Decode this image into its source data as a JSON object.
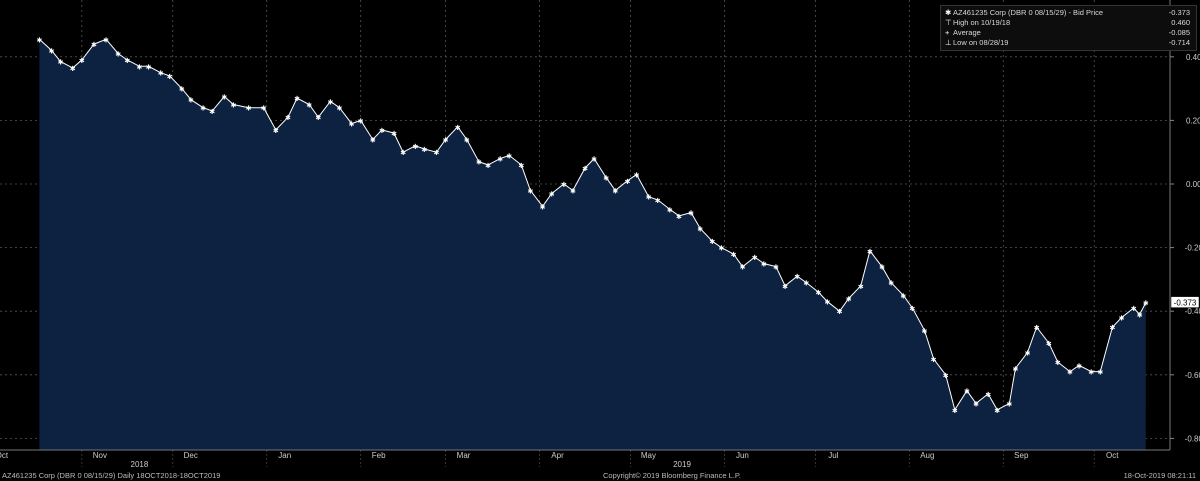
{
  "chart_data": {
    "type": "area",
    "title": "",
    "xlabel": "",
    "ylabel": "",
    "ylim": [
      -0.85,
      0.5
    ],
    "y_ticks": [
      "0.400",
      "0.200",
      "0.000",
      "-0.200",
      "-0.400",
      "-0.600",
      "-0.800"
    ],
    "y_tick_values": [
      0.4,
      0.2,
      0.0,
      -0.2,
      -0.4,
      -0.6,
      -0.8
    ],
    "x_range": [
      "2018-10-18",
      "2019-10-18"
    ],
    "month_labels": [
      {
        "label": "Oct",
        "date": "2018-10-01"
      },
      {
        "label": "Nov",
        "date": "2018-11-01"
      },
      {
        "label": "Dec",
        "date": "2018-12-01"
      },
      {
        "label": "Jan",
        "date": "2019-01-01"
      },
      {
        "label": "Feb",
        "date": "2019-02-01"
      },
      {
        "label": "Mar",
        "date": "2019-03-01"
      },
      {
        "label": "Apr",
        "date": "2019-04-01"
      },
      {
        "label": "May",
        "date": "2019-05-01"
      },
      {
        "label": "Jun",
        "date": "2019-06-01"
      },
      {
        "label": "Jul",
        "date": "2019-07-01"
      },
      {
        "label": "Aug",
        "date": "2019-08-01"
      },
      {
        "label": "Sep",
        "date": "2019-09-01"
      },
      {
        "label": "Oct",
        "date": "2019-10-01"
      }
    ],
    "year_labels": [
      {
        "label": "2018",
        "date": "2018-11-20"
      },
      {
        "label": "2019",
        "date": "2019-05-18"
      }
    ],
    "series": [
      {
        "name": "AZ461235 Corp (DBR 0 08/15/29) - Bid Price",
        "points": [
          [
            "2018-10-18",
            0.455
          ],
          [
            "2018-10-22",
            0.42
          ],
          [
            "2018-10-25",
            0.385
          ],
          [
            "2018-10-29",
            0.365
          ],
          [
            "2018-11-01",
            0.39
          ],
          [
            "2018-11-05",
            0.44
          ],
          [
            "2018-11-09",
            0.455
          ],
          [
            "2018-11-13",
            0.41
          ],
          [
            "2018-11-16",
            0.39
          ],
          [
            "2018-11-20",
            0.37
          ],
          [
            "2018-11-23",
            0.37
          ],
          [
            "2018-11-27",
            0.35
          ],
          [
            "2018-11-30",
            0.34
          ],
          [
            "2018-12-04",
            0.3
          ],
          [
            "2018-12-07",
            0.265
          ],
          [
            "2018-12-11",
            0.24
          ],
          [
            "2018-12-14",
            0.23
          ],
          [
            "2018-12-18",
            0.275
          ],
          [
            "2018-12-21",
            0.25
          ],
          [
            "2018-12-26",
            0.24
          ],
          [
            "2018-12-31",
            0.24
          ],
          [
            "2019-01-04",
            0.17
          ],
          [
            "2019-01-08",
            0.21
          ],
          [
            "2019-01-11",
            0.27
          ],
          [
            "2019-01-15",
            0.25
          ],
          [
            "2019-01-18",
            0.21
          ],
          [
            "2019-01-22",
            0.26
          ],
          [
            "2019-01-25",
            0.24
          ],
          [
            "2019-01-29",
            0.19
          ],
          [
            "2019-02-01",
            0.2
          ],
          [
            "2019-02-05",
            0.14
          ],
          [
            "2019-02-08",
            0.17
          ],
          [
            "2019-02-12",
            0.16
          ],
          [
            "2019-02-15",
            0.1
          ],
          [
            "2019-02-19",
            0.12
          ],
          [
            "2019-02-22",
            0.11
          ],
          [
            "2019-02-26",
            0.1
          ],
          [
            "2019-03-01",
            0.14
          ],
          [
            "2019-03-05",
            0.18
          ],
          [
            "2019-03-08",
            0.14
          ],
          [
            "2019-03-12",
            0.07
          ],
          [
            "2019-03-15",
            0.06
          ],
          [
            "2019-03-19",
            0.08
          ],
          [
            "2019-03-22",
            0.09
          ],
          [
            "2019-03-26",
            0.06
          ],
          [
            "2019-03-29",
            -0.02
          ],
          [
            "2019-04-02",
            -0.07
          ],
          [
            "2019-04-05",
            -0.03
          ],
          [
            "2019-04-09",
            0.0
          ],
          [
            "2019-04-12",
            -0.02
          ],
          [
            "2019-04-16",
            0.05
          ],
          [
            "2019-04-19",
            0.08
          ],
          [
            "2019-04-23",
            0.02
          ],
          [
            "2019-04-26",
            -0.02
          ],
          [
            "2019-04-30",
            0.01
          ],
          [
            "2019-05-03",
            0.03
          ],
          [
            "2019-05-07",
            -0.04
          ],
          [
            "2019-05-10",
            -0.05
          ],
          [
            "2019-05-14",
            -0.08
          ],
          [
            "2019-05-17",
            -0.1
          ],
          [
            "2019-05-21",
            -0.09
          ],
          [
            "2019-05-24",
            -0.14
          ],
          [
            "2019-05-28",
            -0.18
          ],
          [
            "2019-05-31",
            -0.2
          ],
          [
            "2019-06-04",
            -0.22
          ],
          [
            "2019-06-07",
            -0.26
          ],
          [
            "2019-06-11",
            -0.23
          ],
          [
            "2019-06-14",
            -0.25
          ],
          [
            "2019-06-18",
            -0.26
          ],
          [
            "2019-06-21",
            -0.32
          ],
          [
            "2019-06-25",
            -0.29
          ],
          [
            "2019-06-28",
            -0.31
          ],
          [
            "2019-07-02",
            -0.34
          ],
          [
            "2019-07-05",
            -0.37
          ],
          [
            "2019-07-09",
            -0.4
          ],
          [
            "2019-07-12",
            -0.36
          ],
          [
            "2019-07-16",
            -0.32
          ],
          [
            "2019-07-19",
            -0.21
          ],
          [
            "2019-07-23",
            -0.26
          ],
          [
            "2019-07-26",
            -0.31
          ],
          [
            "2019-07-30",
            -0.35
          ],
          [
            "2019-08-02",
            -0.39
          ],
          [
            "2019-08-06",
            -0.46
          ],
          [
            "2019-08-09",
            -0.55
          ],
          [
            "2019-08-13",
            -0.6
          ],
          [
            "2019-08-16",
            -0.71
          ],
          [
            "2019-08-20",
            -0.65
          ],
          [
            "2019-08-23",
            -0.69
          ],
          [
            "2019-08-27",
            -0.66
          ],
          [
            "2019-08-30",
            -0.71
          ],
          [
            "2019-09-03",
            -0.69
          ],
          [
            "2019-09-05",
            -0.58
          ],
          [
            "2019-09-09",
            -0.53
          ],
          [
            "2019-09-12",
            -0.45
          ],
          [
            "2019-09-16",
            -0.5
          ],
          [
            "2019-09-19",
            -0.56
          ],
          [
            "2019-09-23",
            -0.59
          ],
          [
            "2019-09-26",
            -0.57
          ],
          [
            "2019-09-30",
            -0.59
          ],
          [
            "2019-10-03",
            -0.59
          ],
          [
            "2019-10-07",
            -0.45
          ],
          [
            "2019-10-10",
            -0.42
          ],
          [
            "2019-10-14",
            -0.39
          ],
          [
            "2019-10-16",
            -0.41
          ],
          [
            "2019-10-18",
            -0.373
          ]
        ]
      }
    ],
    "last_value_label": "-0.373",
    "colors": {
      "background": "#000000",
      "area": "#0c2240",
      "line": "#ffffff",
      "grid": "#555555",
      "axis_text": "#cccccc"
    },
    "grid": true,
    "legend_position": "top-right"
  },
  "legend": {
    "rows": [
      {
        "marker": "star-icon",
        "label": "AZ461235 Corp (DBR 0 08/15/29)  - Bid Price",
        "value": "-0.373"
      },
      {
        "marker": "high-icon",
        "label": "High on 10/19/18",
        "value": "0.460"
      },
      {
        "marker": "average-icon",
        "label": "Average",
        "value": "-0.085"
      },
      {
        "marker": "low-icon",
        "label": "Low on 08/28/19",
        "value": "-0.714"
      }
    ]
  },
  "footer": {
    "left": "AZ461235 Corp (DBR 0 08/15/29)  Daily 18OCT2018-18OCT2019",
    "center": "Copyright© 2019 Bloomberg Finance L.P.",
    "right": "18-Oct-2019 08:21:11"
  }
}
